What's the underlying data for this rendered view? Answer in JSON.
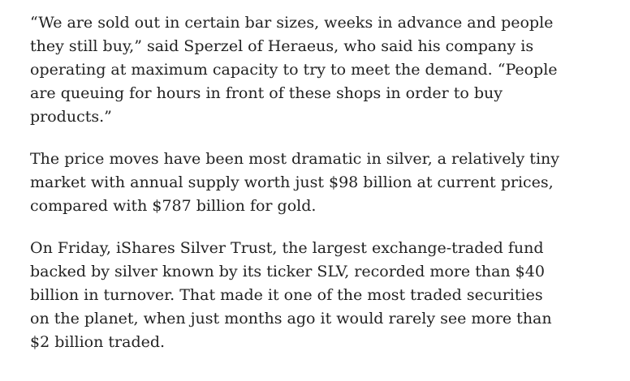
{
  "article": {
    "paragraphs": [
      {
        "lines": [
          "“We are sold out in certain bar sizes, weeks in advance and people",
          "they still buy,” said Sperzel of Heraeus, who said his company is",
          "operating at maximum capacity to try to meet the demand. “People",
          "are queuing for hours in front of these shops in order to buy",
          "products.”"
        ]
      },
      {
        "lines": [
          "The price moves have been most dramatic in silver, a relatively tiny",
          "market with annual supply worth just $98 billion at current prices,",
          "compared with $787 billion for gold."
        ]
      },
      {
        "lines": [
          "On Friday, iShares Silver Trust, the largest exchange-traded fund",
          "backed by silver known by its ticker SLV, recorded more than $40",
          "billion in turnover. That made it one of the most traded securities",
          "on the planet, when just months ago it would rarely see more than",
          "$2 billion traded."
        ]
      }
    ]
  }
}
